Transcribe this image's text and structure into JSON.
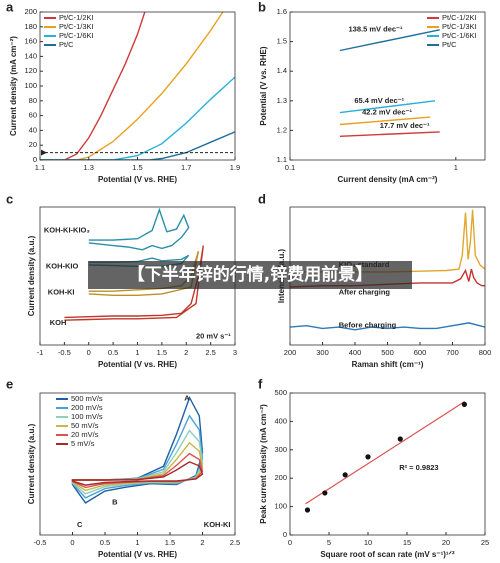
{
  "overlay_title": "【下半年锌的行情,锌费用前景】",
  "chart_data": [
    {
      "type": "line",
      "label": "a",
      "x_label": "Potential (V vs. RHE)",
      "y_label": "Current density (mA cm⁻²)",
      "xlim": [
        1.1,
        1.9
      ],
      "xticks": [
        1.1,
        1.3,
        1.5,
        1.7,
        1.9
      ],
      "ylim": [
        0,
        200
      ],
      "yticks": [
        0,
        20,
        40,
        60,
        80,
        100,
        120,
        140,
        160,
        180,
        200
      ],
      "legend": "upper left",
      "reference_line": 10,
      "series": [
        {
          "name": "Pt/C-1/2KI",
          "color": "#d03a3a",
          "x": [
            1.1,
            1.2,
            1.25,
            1.3,
            1.35,
            1.4,
            1.45,
            1.5,
            1.53
          ],
          "values": [
            0,
            0,
            8,
            30,
            60,
            95,
            130,
            170,
            200
          ]
        },
        {
          "name": "Pt/C-1/3KI",
          "color": "#e8a020",
          "x": [
            1.1,
            1.25,
            1.3,
            1.4,
            1.5,
            1.6,
            1.7,
            1.8,
            1.85
          ],
          "values": [
            0,
            0,
            4,
            25,
            55,
            90,
            130,
            175,
            200
          ]
        },
        {
          "name": "Pt/C-1/6KI",
          "color": "#2ab0d8",
          "x": [
            1.1,
            1.4,
            1.5,
            1.6,
            1.7,
            1.8,
            1.9
          ],
          "values": [
            0,
            0,
            6,
            22,
            50,
            82,
            112
          ]
        },
        {
          "name": "Pt/C",
          "color": "#1f6f9a",
          "x": [
            1.1,
            1.55,
            1.6,
            1.7,
            1.8,
            1.9
          ],
          "values": [
            0,
            0,
            2,
            10,
            24,
            38
          ]
        }
      ]
    },
    {
      "type": "line",
      "label": "b",
      "x_label": "Current density (mA cm⁻²)",
      "y_label": "Potential (V vs. RHE)",
      "xlog": true,
      "xlim": [
        0.1,
        1.5
      ],
      "xticks": [
        0.1,
        1
      ],
      "ylim": [
        1.1,
        1.6
      ],
      "yticks": [
        1.1,
        1.2,
        1.3,
        1.4,
        1.5,
        1.6
      ],
      "legend": "upper right",
      "annotations": [
        "138.5 mV dec⁻¹",
        "65.4 mV dec⁻¹",
        "42.2 mV dec⁻¹",
        "17.7 mV dec⁻¹"
      ],
      "series": [
        {
          "name": "Pt/C-1/2KI",
          "color": "#d03a3a",
          "x": [
            0.2,
            0.8
          ],
          "values": [
            1.18,
            1.195
          ]
        },
        {
          "name": "Pt/C-1/3KI",
          "color": "#e8a020",
          "x": [
            0.2,
            0.7
          ],
          "values": [
            1.22,
            1.245
          ]
        },
        {
          "name": "Pt/C-1/6KI",
          "color": "#2ab0d8",
          "x": [
            0.2,
            0.75
          ],
          "values": [
            1.26,
            1.3
          ]
        },
        {
          "name": "Pt/C",
          "color": "#1f6f9a",
          "x": [
            0.2,
            0.8
          ],
          "values": [
            1.47,
            1.54
          ]
        }
      ]
    },
    {
      "type": "line",
      "label": "c",
      "x_label": "Potential (V vs. RHE)",
      "y_label": "Current density (a.u.)",
      "xlim": [
        -1,
        3
      ],
      "xticks": [
        -1,
        -0.5,
        0,
        0.5,
        1,
        1.5,
        2,
        2.5,
        3
      ],
      "ylim": [
        0,
        10
      ],
      "legend": "inline",
      "annotations": [
        "20 mV s⁻¹"
      ],
      "series": [
        {
          "name": "KOH-KI-KIO₃",
          "color": "#2a8fa8",
          "x": [
            0,
            0.5,
            1,
            1.3,
            1.45,
            1.6,
            1.8,
            1.95,
            2.05,
            1.9,
            1.7,
            1.5,
            1.3,
            1.1,
            0.8,
            0.5,
            0
          ],
          "values": [
            7.6,
            7.6,
            7.7,
            8.3,
            9.8,
            8.2,
            8.4,
            9.4,
            8.5,
            7.8,
            7.2,
            7.0,
            7.2,
            6.9,
            7.1,
            7.2,
            7.4
          ]
        },
        {
          "name": "KOH-KIO",
          "color": "#2a8fa8",
          "x": [
            0,
            0.5,
            1,
            1.3,
            1.5,
            1.9,
            2.05,
            1.9,
            1.5,
            1,
            0.5,
            0
          ],
          "values": [
            6.0,
            6.0,
            6.05,
            6.3,
            6.1,
            6.2,
            6.5,
            5.9,
            5.7,
            5.7,
            5.75,
            5.8
          ]
        },
        {
          "name": "KOH-KI",
          "color": "#b8912a",
          "x": [
            0,
            0.5,
            1,
            1.5,
            1.9,
            2.1,
            2.25,
            2.1,
            1.5,
            1,
            0.5,
            0
          ],
          "values": [
            3.9,
            3.9,
            4.0,
            4.1,
            4.3,
            5,
            6.8,
            4.2,
            3.7,
            3.6,
            3.6,
            3.7
          ]
        },
        {
          "name": "KOH",
          "color": "#c0392b",
          "x": [
            -0.5,
            0,
            0.5,
            1,
            1.5,
            1.9,
            2.1,
            2.25,
            2.35,
            2.2,
            1.8,
            1,
            0.5,
            0,
            -0.5
          ],
          "values": [
            2.0,
            2.05,
            2.1,
            2.1,
            2.15,
            2.3,
            3,
            5,
            7.2,
            3,
            2.0,
            1.9,
            1.9,
            1.85,
            1.8
          ]
        }
      ]
    },
    {
      "type": "line",
      "label": "d",
      "x_label": "Raman shift (cm⁻¹)",
      "y_label": "Intensity (a.u.)",
      "xlim": [
        200,
        800
      ],
      "xticks": [
        200,
        300,
        400,
        500,
        600,
        700,
        800
      ],
      "ylim": [
        0,
        10
      ],
      "legend": "inline",
      "series": [
        {
          "name": "KIO₃ standard",
          "color": "#e0a82e",
          "x": [
            200,
            300,
            400,
            500,
            600,
            680,
            720,
            730,
            740,
            748,
            755,
            762,
            770,
            785,
            800
          ],
          "values": [
            5.3,
            5.3,
            5.3,
            5.3,
            5.35,
            5.4,
            5.5,
            6.5,
            9.6,
            6.2,
            7.5,
            9.8,
            6.5,
            5.8,
            5.5
          ]
        },
        {
          "name": "After charging",
          "color": "#c83232",
          "x": [
            200,
            300,
            400,
            500,
            600,
            700,
            725,
            740,
            750,
            758,
            765,
            775,
            790,
            800
          ],
          "values": [
            4.2,
            4.3,
            4.3,
            4.4,
            4.5,
            4.5,
            4.8,
            5.4,
            4.6,
            5.5,
            4.9,
            4.5,
            4.3,
            4.3
          ]
        },
        {
          "name": "Before charging",
          "color": "#2e78b8",
          "x": [
            200,
            250,
            300,
            350,
            400,
            450,
            500,
            550,
            600,
            650,
            700,
            750,
            800
          ],
          "values": [
            1.3,
            1.4,
            1.2,
            1.3,
            1.1,
            1.3,
            1.2,
            1.3,
            1.2,
            1.2,
            1.4,
            1.6,
            1.3
          ]
        }
      ]
    },
    {
      "type": "line",
      "label": "e",
      "x_label": "Potential (V vs. RHE)",
      "y_label": "Current density (a.u.)",
      "xlim": [
        -0.5,
        2.5
      ],
      "xticks": [
        -0.5,
        0,
        0.5,
        1,
        1.5,
        2,
        2.5
      ],
      "ylim": [
        -6,
        9.5
      ],
      "legend": "upper left",
      "closed": true,
      "annotations": [
        "A",
        "B",
        "C",
        "KOH-KI"
      ],
      "series": [
        {
          "name": "500 mV/s",
          "color": "#1f5fa8",
          "x": [
            0,
            0.5,
            1,
            1.4,
            1.6,
            1.8,
            1.95,
            2,
            1.9,
            1.6,
            1.2,
            0.8,
            0.5,
            0.2,
            0
          ],
          "values": [
            0,
            0,
            0.2,
            1.5,
            5,
            9,
            7,
            3,
            0.5,
            -0.5,
            -0.4,
            -0.8,
            -1.2,
            -2.5,
            -0.5
          ]
        },
        {
          "name": "200 mV/s",
          "color": "#4aa3d8",
          "x": [
            0,
            0.5,
            1,
            1.4,
            1.6,
            1.8,
            1.95,
            2,
            1.9,
            1.6,
            1.2,
            0.8,
            0.5,
            0.2,
            0
          ],
          "values": [
            0,
            0,
            0.16,
            1.17,
            3.9,
            7.02,
            5.46,
            2.34,
            0.39,
            -0.39,
            -0.31,
            -0.62,
            -0.94,
            -1.95,
            -0.39
          ]
        },
        {
          "name": "100 mV/s",
          "color": "#8fd1b8",
          "x": [
            0,
            0.5,
            1,
            1.4,
            1.6,
            1.8,
            1.95,
            2,
            1.9,
            1.6,
            1.2,
            0.8,
            0.5,
            0.2,
            0
          ],
          "values": [
            0,
            0,
            0.12,
            0.9,
            3,
            5.4,
            4.2,
            1.8,
            0.3,
            -0.3,
            -0.24,
            -0.48,
            -0.72,
            -1.5,
            -0.3
          ]
        },
        {
          "name": "50 mV/s",
          "color": "#c8b84a",
          "x": [
            0,
            0.5,
            1,
            1.4,
            1.6,
            1.8,
            1.95,
            2,
            1.9,
            1.6,
            1.2,
            0.8,
            0.5,
            0.2,
            0
          ],
          "values": [
            0,
            0,
            0.09,
            0.68,
            2.25,
            4.05,
            3.15,
            1.35,
            0.23,
            -0.23,
            -0.18,
            -0.36,
            -0.54,
            -1.13,
            -0.23
          ]
        },
        {
          "name": "20 mV/s",
          "color": "#d9534f",
          "x": [
            0,
            0.5,
            1,
            1.4,
            1.6,
            1.8,
            1.95,
            2,
            1.9,
            1.6,
            1.2,
            0.8,
            0.5,
            0.2,
            0
          ],
          "values": [
            0,
            0,
            0.06,
            0.48,
            1.6,
            2.88,
            2.24,
            0.96,
            0.16,
            -0.16,
            -0.13,
            -0.26,
            -0.38,
            -0.8,
            -0.16
          ]
        },
        {
          "name": "5 mV/s",
          "color": "#a52a2a",
          "x": [
            0,
            0.5,
            1,
            1.4,
            1.6,
            1.8,
            1.95,
            2,
            1.9,
            1.6,
            1.2,
            0.8,
            0.5,
            0.2,
            0
          ],
          "values": [
            0,
            0,
            0.04,
            0.33,
            1.1,
            1.98,
            1.54,
            0.66,
            0.11,
            -0.11,
            -0.09,
            -0.18,
            -0.26,
            -0.55,
            -0.11
          ]
        }
      ]
    },
    {
      "type": "scatter",
      "label": "f",
      "x_label": "Square root of scan rate (mV s⁻¹)¹ᐟ²",
      "y_label": "Peak current density (mA cm⁻²)",
      "xlim": [
        0,
        25
      ],
      "xticks": [
        0,
        5,
        10,
        15,
        20,
        25
      ],
      "ylim": [
        0,
        500
      ],
      "yticks": [
        0,
        100,
        200,
        300,
        400,
        500
      ],
      "annotations": [
        "R² = 0.9823"
      ],
      "color": "#111111",
      "x": [
        2.24,
        4.47,
        7.07,
        10,
        14.14,
        22.36
      ],
      "values": [
        88,
        148,
        212,
        275,
        338,
        460
      ],
      "fit": {
        "color": "#d9534f",
        "x": [
          2,
          22.4
        ],
        "values": [
          110,
          470
        ]
      }
    }
  ]
}
